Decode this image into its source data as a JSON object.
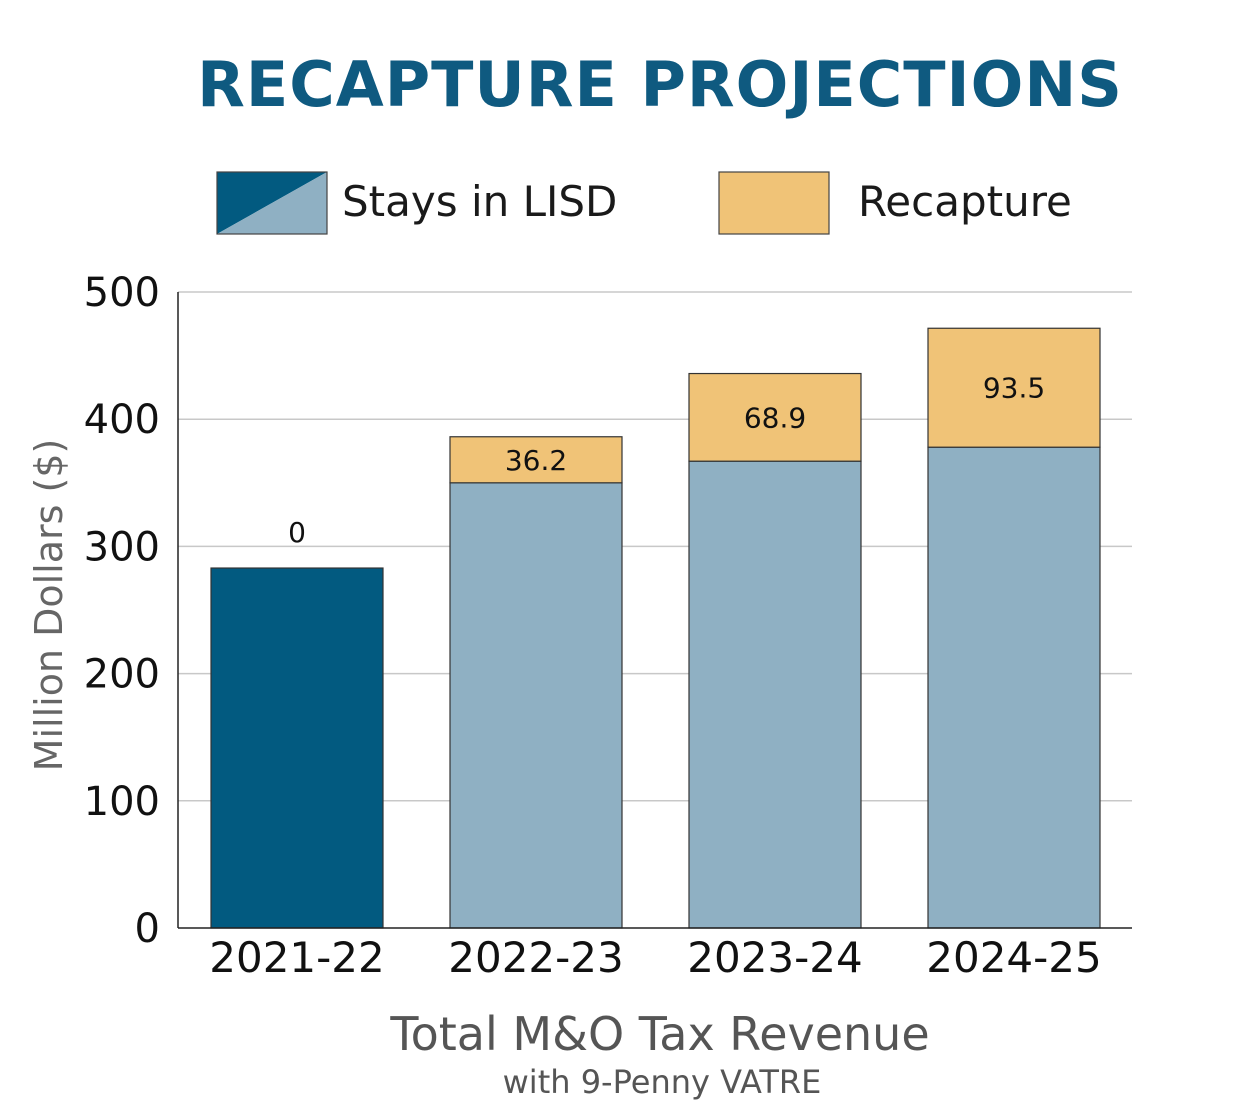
{
  "chart_data": {
    "type": "bar",
    "stacked": true,
    "title": "RECAPTURE PROJECTIONS",
    "categories": [
      "2021-22",
      "2022-23",
      "2023-24",
      "2024-25"
    ],
    "series": [
      {
        "name": "Stays in LISD",
        "values": [
          283,
          350,
          367,
          378
        ]
      },
      {
        "name": "Recapture",
        "values": [
          0,
          36.2,
          68.9,
          93.5
        ]
      }
    ],
    "data_labels": [
      "0",
      "36.2",
      "68.9",
      "93.5"
    ],
    "ylabel": "Million Dollars ($)",
    "xlabel": "Total M&O Tax Revenue",
    "xlabel_sub": "with 9-Penny VATRE",
    "ylim": [
      0,
      500
    ],
    "yticks": [
      0,
      100,
      200,
      300,
      400,
      500
    ],
    "grid": true,
    "legend_position": "top"
  },
  "colors": {
    "title": "#0f5a80",
    "stays_first_year": "#025a80",
    "stays": "#8fb0c3",
    "recapture": "#f0c377",
    "grid": "#c8c8c8"
  }
}
